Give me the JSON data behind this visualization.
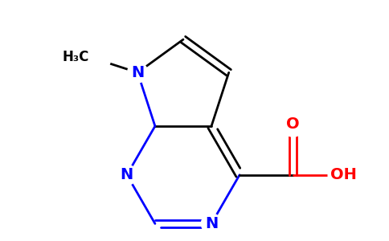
{
  "background_color": "#ffffff",
  "bond_color": "#000000",
  "N_color": "#0000ff",
  "O_color": "#ff0000",
  "line_width": 2.0,
  "figsize": [
    4.84,
    3.0
  ],
  "dpi": 100,
  "xlim": [
    -2.8,
    3.2
  ],
  "ylim": [
    -2.0,
    2.2
  ]
}
